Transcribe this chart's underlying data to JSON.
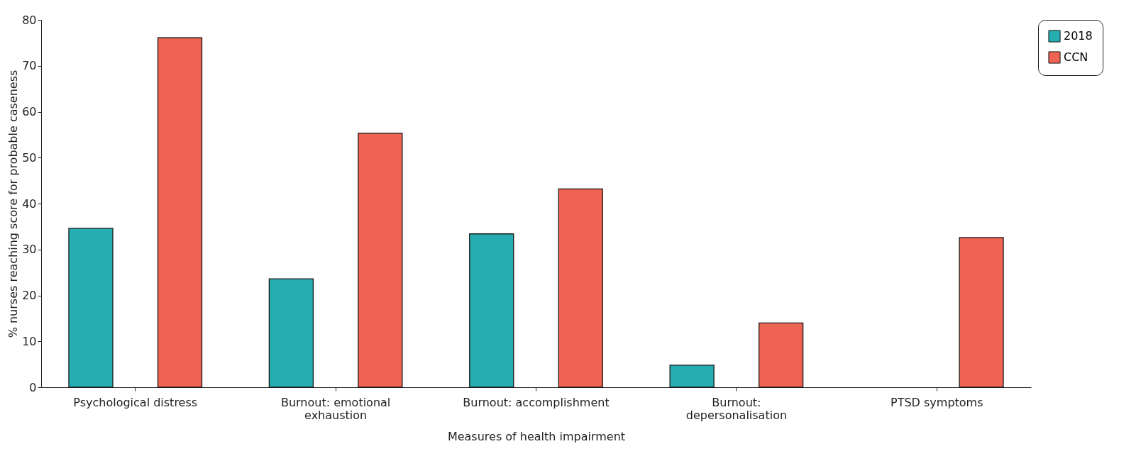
{
  "chart_data": {
    "type": "bar",
    "xlabel": "Measures of health impairment",
    "ylabel": "% nurses reaching score for probable caseness",
    "categories": [
      "Psychological distress",
      "Burnout: emotional exhaustion",
      "Burnout: accomplishment",
      "Burnout: depersonalisation",
      "PTSD symptoms"
    ],
    "series": [
      {
        "name": "2018",
        "color": "#26adb0",
        "values": [
          34.6,
          23.6,
          33.4,
          4.8,
          null
        ]
      },
      {
        "name": "CCN",
        "color": "#ee6352",
        "values": [
          76.1,
          55.3,
          43.2,
          14.0,
          32.6
        ]
      }
    ],
    "ylim": [
      0,
      80
    ],
    "yticks": [
      0,
      10,
      20,
      30,
      40,
      50,
      60,
      70,
      80
    ],
    "grid": false,
    "legend": "right"
  }
}
